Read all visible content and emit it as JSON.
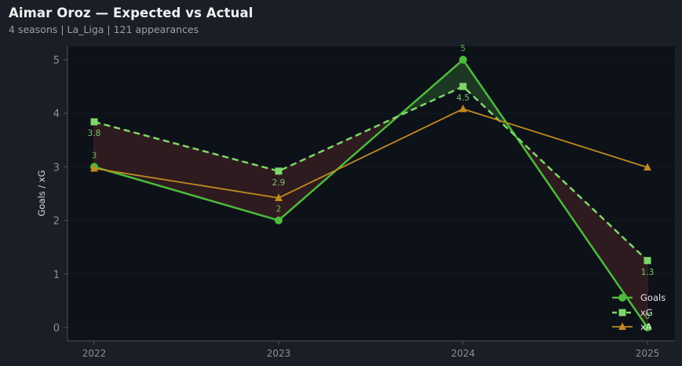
{
  "header": {
    "title": "Aimar Oroz — Expected vs Actual",
    "subtitle": "4 seasons | La_Liga | 121 appearances"
  },
  "colors": {
    "figure_bg": "#1a1e26",
    "plot_bg": "#0d1118",
    "grid": "#141922",
    "spine": "#4a505a",
    "goals": "#4cbb3c",
    "xg": "#7ed66a",
    "xa": "#c08a20",
    "fill_over": "#1d3822",
    "fill_under": "#2e1b1f",
    "fill_under_edge": "#4a2026"
  },
  "chart_data": {
    "type": "line",
    "title": "Aimar Oroz — Expected vs Actual",
    "subtitle": "4 seasons | La_Liga | 121 appearances",
    "xlabel": "",
    "ylabel": "Goals / xG",
    "categories": [
      "2022",
      "2023",
      "2024",
      "2025"
    ],
    "yticks": [
      0,
      1,
      2,
      3,
      4,
      5
    ],
    "ylim": [
      -0.25,
      5.25
    ],
    "grid": true,
    "legend_position": "lower right",
    "series": [
      {
        "name": "Goals",
        "marker": "circle",
        "style": "solid",
        "values": [
          3,
          2,
          5,
          0
        ],
        "labels": [
          "3",
          "2",
          "5",
          "0"
        ],
        "label_position": "above"
      },
      {
        "name": "xG",
        "marker": "square",
        "style": "dashed",
        "values": [
          3.84,
          2.92,
          4.5,
          1.25
        ],
        "labels": [
          "3.8",
          "2.9",
          "4.5",
          "1.3"
        ],
        "label_position": "below"
      },
      {
        "name": "xA",
        "marker": "triangle",
        "style": "solid",
        "values": [
          2.97,
          2.42,
          4.08,
          2.99
        ]
      }
    ],
    "fill_between": {
      "series": [
        "Goals",
        "xG"
      ],
      "over_color": "green",
      "under_color": "red"
    }
  }
}
